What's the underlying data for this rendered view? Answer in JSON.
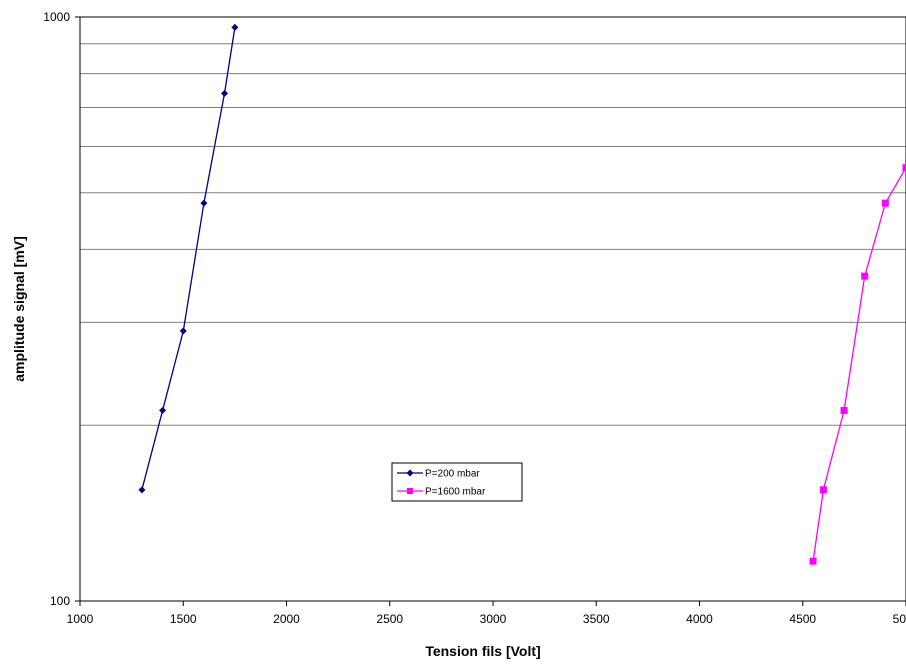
{
  "chart_data": {
    "type": "line",
    "title": "",
    "xlabel": "Tension fils [Volt]",
    "ylabel": "amplitude signal [mV]",
    "xlim": [
      1000,
      5000
    ],
    "ylim": [
      100,
      1000
    ],
    "yscale": "log",
    "grid": "horizontal",
    "legend_position": "center-bottom",
    "x_ticks": [
      "1000",
      "1500",
      "2000",
      "2500",
      "3000",
      "3500",
      "4000",
      "4500",
      "5000"
    ],
    "y_ticks": [
      "100",
      "1000"
    ],
    "series": [
      {
        "name": "P=200 mbar",
        "color": "#000080",
        "marker": "diamond",
        "x": [
          1300,
          1400,
          1500,
          1600,
          1700,
          1750
        ],
        "y": [
          155,
          212,
          290,
          480,
          740,
          960
        ]
      },
      {
        "name": "P=1600 mbar",
        "color": "#FF00FF",
        "marker": "square",
        "x": [
          4550,
          4600,
          4700,
          4800,
          4900,
          5000
        ],
        "y": [
          117,
          155,
          212,
          360,
          480,
          552
        ]
      }
    ]
  }
}
